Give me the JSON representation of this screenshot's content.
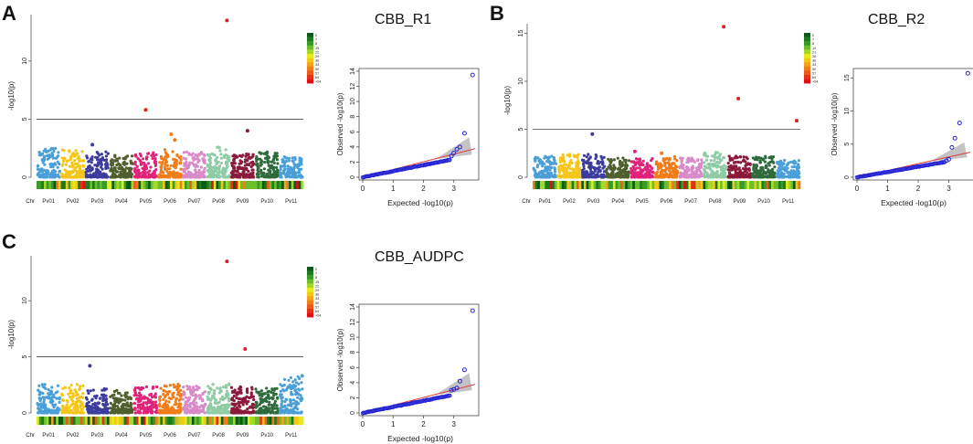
{
  "figure": {
    "panels": [
      {
        "letter": "A",
        "title": "CBB_R1"
      },
      {
        "letter": "B",
        "title": "CBB_R2"
      },
      {
        "letter": "C",
        "title": "CBB_AUDPC"
      }
    ]
  },
  "chart_data": [
    {
      "type": "scatter",
      "subtype": "manhattan",
      "panel": "A",
      "ylabel": "-log10(p)",
      "ylim": [
        0,
        14
      ],
      "yticks": [
        0,
        5,
        10
      ],
      "threshold": 5,
      "chromosomes": [
        "Chr",
        "Pv01",
        "Pv02",
        "Pv03",
        "Pv04",
        "Pv05",
        "Pv06",
        "Pv07",
        "Pv08",
        "Pv09",
        "Pv10",
        "Pv11"
      ],
      "chromosome_colors": [
        "#4a9fd8",
        "#f5c518",
        "#3c3c9e",
        "#4f5f2d",
        "#e0237a",
        "#f07d1a",
        "#d98ac8",
        "#8fcca6",
        "#8b1a3a",
        "#2e6b3b",
        "#4a9fd8"
      ],
      "chromosome_max": [
        2.5,
        2.4,
        2.2,
        2.0,
        2.2,
        2.4,
        2.2,
        2.6,
        2.0,
        2.2,
        1.8
      ],
      "significant_snps": [
        {
          "chromosome": "Pv05",
          "pos": 0.5,
          "y": 5.8,
          "color": "#e11d1d"
        },
        {
          "chromosome": "Pv08",
          "pos": 0.85,
          "y": 13.5,
          "color": "#e11d1d"
        },
        {
          "chromosome": "Pv06",
          "pos": 0.55,
          "y": 3.7,
          "color": "#f07d1a"
        },
        {
          "chromosome": "Pv06",
          "pos": 0.7,
          "y": 3.2,
          "color": "#f07d1a"
        },
        {
          "chromosome": "Pv09",
          "pos": 0.7,
          "y": 4.0,
          "color": "#8b1a3a"
        },
        {
          "chromosome": "Pv03",
          "pos": 0.3,
          "y": 2.8,
          "color": "#3c3c9e"
        }
      ],
      "density_legend": [
        "0",
        "7",
        "8",
        "15",
        "22",
        "29",
        "36",
        "43",
        "50",
        "57",
        "64",
        ">64"
      ]
    },
    {
      "type": "scatter",
      "subtype": "qq",
      "panel": "A",
      "xlabel": "Expected -log10(p)",
      "ylabel": "Observed -log10(p)",
      "xlim": [
        0,
        3.7
      ],
      "ylim": [
        0,
        14
      ],
      "xticks": [
        0,
        1,
        2,
        3
      ],
      "yticks": [
        0,
        2,
        4,
        6,
        8,
        10,
        12,
        14
      ],
      "top_observed": [
        {
          "x": 3.62,
          "y": 13.5
        },
        {
          "x": 3.35,
          "y": 5.8
        },
        {
          "x": 3.2,
          "y": 4.0
        },
        {
          "x": 3.1,
          "y": 3.7
        },
        {
          "x": 3.0,
          "y": 3.2
        },
        {
          "x": 2.92,
          "y": 2.8
        }
      ]
    },
    {
      "type": "scatter",
      "subtype": "manhattan",
      "panel": "B",
      "ylabel": "-log10(p)",
      "ylim": [
        0,
        16
      ],
      "yticks": [
        0,
        5,
        10,
        15
      ],
      "threshold": 5,
      "chromosomes": [
        "Chr",
        "Pv01",
        "Pv02",
        "Pv03",
        "Pv04",
        "Pv05",
        "Pv06",
        "Pv07",
        "Pv08",
        "Pv09",
        "Pv10",
        "Pv11"
      ],
      "chromosome_colors": [
        "#4a9fd8",
        "#f5c518",
        "#3c3c9e",
        "#4f5f2d",
        "#e0237a",
        "#f07d1a",
        "#d98ac8",
        "#8fcca6",
        "#8b1a3a",
        "#2e6b3b",
        "#4a9fd8"
      ],
      "chromosome_max": [
        2.2,
        2.4,
        2.4,
        2.0,
        2.0,
        2.2,
        2.0,
        2.6,
        2.2,
        2.2,
        1.8
      ],
      "significant_snps": [
        {
          "chromosome": "Pv08",
          "pos": 0.85,
          "y": 15.7,
          "color": "#e11d1d"
        },
        {
          "chromosome": "Pv09",
          "pos": 0.45,
          "y": 8.2,
          "color": "#e11d1d"
        },
        {
          "chromosome": "Pv11",
          "pos": 0.85,
          "y": 5.9,
          "color": "#e11d1d"
        },
        {
          "chromosome": "Pv03",
          "pos": 0.45,
          "y": 4.5,
          "color": "#3c3c9e"
        },
        {
          "chromosome": "Pv05",
          "pos": 0.2,
          "y": 2.7,
          "color": "#e0237a"
        },
        {
          "chromosome": "Pv06",
          "pos": 0.3,
          "y": 2.5,
          "color": "#f07d1a"
        }
      ],
      "density_legend": [
        "0",
        "7",
        "8",
        "14",
        "21",
        "28",
        "36",
        "43",
        "50",
        "57",
        "64",
        ">64"
      ]
    },
    {
      "type": "scatter",
      "subtype": "qq",
      "panel": "B",
      "xlabel": "Expected -log10(p)",
      "ylabel": "Observed -log10(p)",
      "xlim": [
        0,
        3.7
      ],
      "ylim": [
        0,
        16
      ],
      "xticks": [
        0,
        1,
        2,
        3
      ],
      "yticks": [
        0,
        5,
        10,
        15
      ],
      "top_observed": [
        {
          "x": 3.62,
          "y": 15.7
        },
        {
          "x": 3.35,
          "y": 8.2
        },
        {
          "x": 3.2,
          "y": 5.9
        },
        {
          "x": 3.1,
          "y": 4.5
        },
        {
          "x": 3.0,
          "y": 2.7
        },
        {
          "x": 2.92,
          "y": 2.5
        }
      ]
    },
    {
      "type": "scatter",
      "subtype": "manhattan",
      "panel": "C",
      "ylabel": "-log10(p)",
      "ylim": [
        0,
        14
      ],
      "yticks": [
        0,
        5,
        10
      ],
      "threshold": 5,
      "chromosomes": [
        "Chr",
        "Pv01",
        "Pv02",
        "Pv03",
        "Pv04",
        "Pv05",
        "Pv06",
        "Pv07",
        "Pv08",
        "Pv09",
        "Pv10",
        "Pv11"
      ],
      "chromosome_colors": [
        "#4a9fd8",
        "#f5c518",
        "#3c3c9e",
        "#4f5f2d",
        "#e0237a",
        "#f07d1a",
        "#d98ac8",
        "#8fcca6",
        "#8b1a3a",
        "#2e6b3b",
        "#4a9fd8"
      ],
      "chromosome_max": [
        2.6,
        2.6,
        2.2,
        2.0,
        2.4,
        2.6,
        2.4,
        2.6,
        2.4,
        2.2,
        3.3
      ],
      "significant_snps": [
        {
          "chromosome": "Pv08",
          "pos": 0.85,
          "y": 13.5,
          "color": "#e11d1d"
        },
        {
          "chromosome": "Pv09",
          "pos": 0.6,
          "y": 5.7,
          "color": "#e11d1d"
        },
        {
          "chromosome": "Pv03",
          "pos": 0.2,
          "y": 4.2,
          "color": "#3c3c9e"
        },
        {
          "chromosome": "Pv11",
          "pos": 0.95,
          "y": 3.3,
          "color": "#4a9fd8"
        }
      ],
      "density_legend": [
        "0",
        "7",
        "8",
        "15",
        "22",
        "29",
        "36",
        "43",
        "50",
        "57",
        "64",
        ">64"
      ]
    },
    {
      "type": "scatter",
      "subtype": "qq",
      "panel": "C",
      "xlabel": "Expected -log10(p)",
      "ylabel": "Observed -log10(p)",
      "xlim": [
        0,
        3.7
      ],
      "ylim": [
        0,
        14
      ],
      "xticks": [
        0,
        1,
        2,
        3
      ],
      "yticks": [
        0,
        2,
        4,
        6,
        8,
        10,
        12,
        14
      ],
      "top_observed": [
        {
          "x": 3.62,
          "y": 13.5
        },
        {
          "x": 3.35,
          "y": 5.7
        },
        {
          "x": 3.2,
          "y": 4.2
        },
        {
          "x": 3.1,
          "y": 3.3
        },
        {
          "x": 3.0,
          "y": 3.1
        },
        {
          "x": 2.92,
          "y": 3.0
        }
      ]
    }
  ]
}
